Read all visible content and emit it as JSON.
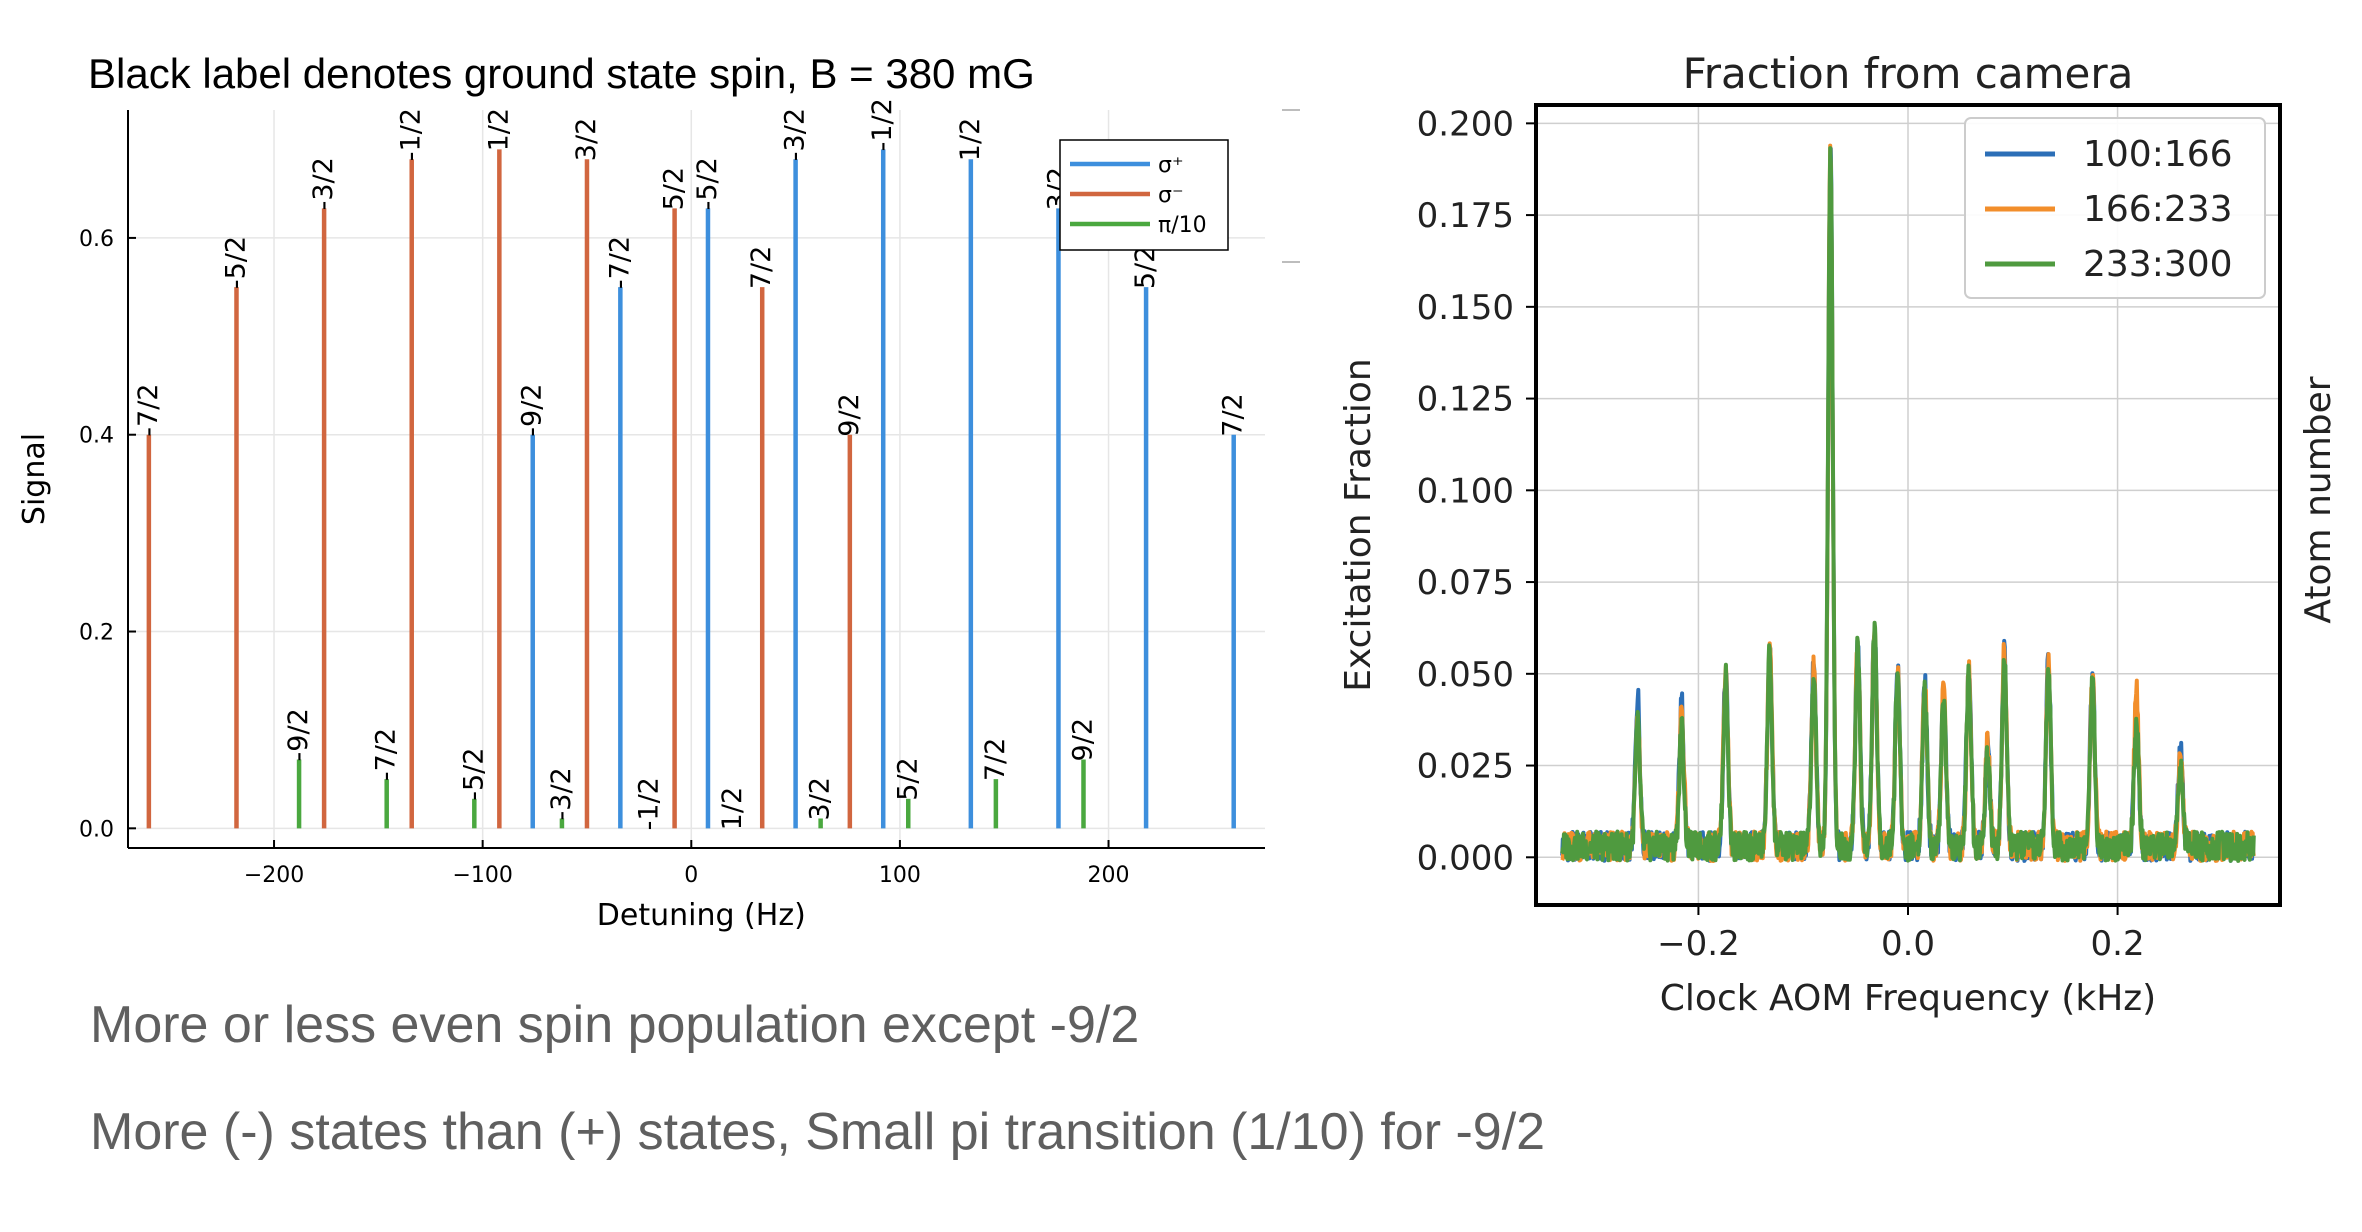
{
  "notes": [
    "More or less even spin population except -9/2",
    "More (-) states than (+) states, Small pi transition (1/10) for -9/2"
  ],
  "chart_data": [
    {
      "type": "stem",
      "title": "Black label denotes ground state spin, B = 380 mG",
      "xlabel": "Detuning (Hz)",
      "ylabel": "Signal",
      "xlim": [
        -270,
        275
      ],
      "ylim": [
        -0.02,
        0.73
      ],
      "xticks": [
        -200,
        -100,
        0,
        100,
        200
      ],
      "yticks": [
        0.0,
        0.2,
        0.4,
        0.6
      ],
      "grid": true,
      "legend_position": "top-right",
      "series": [
        {
          "name": "σ⁺",
          "color": "#3d8fdd",
          "points": [
            {
              "x": -76,
              "y": 0.4,
              "label": "-9/2"
            },
            {
              "x": -34,
              "y": 0.55,
              "label": "-7/2"
            },
            {
              "x": 8,
              "y": 0.63,
              "label": "-5/2"
            },
            {
              "x": 50,
              "y": 0.68,
              "label": "-3/2"
            },
            {
              "x": 92,
              "y": 0.69,
              "label": "-1/2"
            },
            {
              "x": 134,
              "y": 0.68,
              "label": "1/2"
            },
            {
              "x": 176,
              "y": 0.63,
              "label": "3/2"
            },
            {
              "x": 218,
              "y": 0.55,
              "label": "5/2"
            },
            {
              "x": 260,
              "y": 0.4,
              "label": "7/2"
            }
          ]
        },
        {
          "name": "σ⁻",
          "color": "#d1663f",
          "points": [
            {
              "x": -260,
              "y": 0.4,
              "label": "-7/2"
            },
            {
              "x": -218,
              "y": 0.55,
              "label": "-5/2"
            },
            {
              "x": -176,
              "y": 0.63,
              "label": "-3/2"
            },
            {
              "x": -134,
              "y": 0.68,
              "label": "-1/2"
            },
            {
              "x": -92,
              "y": 0.69,
              "label": "1/2"
            },
            {
              "x": -50,
              "y": 0.68,
              "label": "3/2"
            },
            {
              "x": -8,
              "y": 0.63,
              "label": "5/2"
            },
            {
              "x": 34,
              "y": 0.55,
              "label": "7/2"
            },
            {
              "x": 76,
              "y": 0.4,
              "label": "9/2"
            }
          ]
        },
        {
          "name": "π/10",
          "color": "#4aa83f",
          "points": [
            {
              "x": -188,
              "y": 0.07,
              "label": "-9/2"
            },
            {
              "x": -146,
              "y": 0.05,
              "label": "-7/2"
            },
            {
              "x": -104,
              "y": 0.03,
              "label": "-5/2"
            },
            {
              "x": -62,
              "y": 0.01,
              "label": "-3/2"
            },
            {
              "x": -20,
              "y": 0.0,
              "label": "-1/2"
            },
            {
              "x": 20,
              "y": 0.0,
              "label": "1/2"
            },
            {
              "x": 62,
              "y": 0.01,
              "label": "3/2"
            },
            {
              "x": 104,
              "y": 0.03,
              "label": "5/2"
            },
            {
              "x": 146,
              "y": 0.05,
              "label": "7/2"
            },
            {
              "x": 188,
              "y": 0.07,
              "label": "9/2"
            }
          ]
        }
      ]
    },
    {
      "type": "line",
      "title": "Fraction from camera",
      "xlabel": "Clock AOM Frequency (kHz)",
      "ylabel": "Excitation Fraction",
      "right_axis_label": "Atom number",
      "xlim": [
        -0.355,
        0.355
      ],
      "ylim": [
        -0.013,
        0.205
      ],
      "xticks": [
        -0.2,
        0.0,
        0.2
      ],
      "xtick_labels": [
        "−0.2",
        "0.0",
        "0.2"
      ],
      "yticks": [
        0.0,
        0.025,
        0.05,
        0.075,
        0.1,
        0.125,
        0.15,
        0.175,
        0.2
      ],
      "ytick_labels": [
        "0.000",
        "0.025",
        "0.050",
        "0.075",
        "0.100",
        "0.125",
        "0.150",
        "0.175",
        "0.200"
      ],
      "grid": true,
      "legend_position": "top-right",
      "x_range": [
        -0.33,
        0.33
      ],
      "baseline": 0.003,
      "peak_width": 0.0022,
      "series": [
        {
          "name": "100:166",
          "color": "#2c6fb7",
          "peaks": [
            {
              "x": -0.258,
              "y": 0.044
            },
            {
              "x": -0.216,
              "y": 0.042
            },
            {
              "x": -0.174,
              "y": 0.05
            },
            {
              "x": -0.132,
              "y": 0.057
            },
            {
              "x": -0.09,
              "y": 0.052
            },
            {
              "x": -0.074,
              "y": 0.193
            },
            {
              "x": -0.048,
              "y": 0.058
            },
            {
              "x": -0.032,
              "y": 0.063
            },
            {
              "x": -0.01,
              "y": 0.051
            },
            {
              "x": 0.016,
              "y": 0.048
            },
            {
              "x": 0.034,
              "y": 0.045
            },
            {
              "x": 0.058,
              "y": 0.051
            },
            {
              "x": 0.076,
              "y": 0.03
            },
            {
              "x": 0.092,
              "y": 0.056
            },
            {
              "x": 0.134,
              "y": 0.054
            },
            {
              "x": 0.176,
              "y": 0.05
            },
            {
              "x": 0.218,
              "y": 0.039
            },
            {
              "x": 0.26,
              "y": 0.029
            }
          ]
        },
        {
          "name": "166:233",
          "color": "#f28e2b",
          "peaks": [
            {
              "x": -0.258,
              "y": 0.04
            },
            {
              "x": -0.216,
              "y": 0.04
            },
            {
              "x": -0.174,
              "y": 0.051
            },
            {
              "x": -0.132,
              "y": 0.057
            },
            {
              "x": -0.09,
              "y": 0.051
            },
            {
              "x": -0.074,
              "y": 0.192
            },
            {
              "x": -0.048,
              "y": 0.057
            },
            {
              "x": -0.032,
              "y": 0.062
            },
            {
              "x": -0.01,
              "y": 0.05
            },
            {
              "x": 0.016,
              "y": 0.047
            },
            {
              "x": 0.034,
              "y": 0.046
            },
            {
              "x": 0.058,
              "y": 0.05
            },
            {
              "x": 0.076,
              "y": 0.031
            },
            {
              "x": 0.092,
              "y": 0.057
            },
            {
              "x": 0.134,
              "y": 0.052
            },
            {
              "x": 0.176,
              "y": 0.05
            },
            {
              "x": 0.218,
              "y": 0.045
            },
            {
              "x": 0.26,
              "y": 0.027
            }
          ]
        },
        {
          "name": "233:300",
          "color": "#4f9a3f",
          "peaks": [
            {
              "x": -0.258,
              "y": 0.036
            },
            {
              "x": -0.216,
              "y": 0.035
            },
            {
              "x": -0.174,
              "y": 0.049
            },
            {
              "x": -0.132,
              "y": 0.056
            },
            {
              "x": -0.09,
              "y": 0.05
            },
            {
              "x": -0.074,
              "y": 0.194
            },
            {
              "x": -0.048,
              "y": 0.057
            },
            {
              "x": -0.032,
              "y": 0.062
            },
            {
              "x": -0.01,
              "y": 0.05
            },
            {
              "x": 0.016,
              "y": 0.046
            },
            {
              "x": 0.034,
              "y": 0.044
            },
            {
              "x": 0.058,
              "y": 0.05
            },
            {
              "x": 0.076,
              "y": 0.029
            },
            {
              "x": 0.092,
              "y": 0.053
            },
            {
              "x": 0.134,
              "y": 0.051
            },
            {
              "x": 0.176,
              "y": 0.048
            },
            {
              "x": 0.218,
              "y": 0.037
            },
            {
              "x": 0.26,
              "y": 0.025
            }
          ]
        }
      ]
    }
  ]
}
